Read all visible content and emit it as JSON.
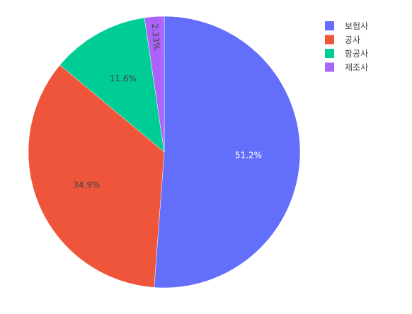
{
  "chart_data": {
    "type": "pie",
    "categories": [
      "보험사",
      "공사",
      "항공사",
      "제조사"
    ],
    "values": [
      51.2,
      34.9,
      11.6,
      2.33
    ],
    "labels": [
      "51.2%",
      "34.9%",
      "11.6%",
      "2.33%"
    ],
    "colors": [
      "#636efa",
      "#ef553b",
      "#00cc96",
      "#ab63fa"
    ],
    "label_colors": [
      "#ffffff",
      "#444444",
      "#444444",
      "#444444"
    ],
    "direction": "clockwise",
    "start_angle": "top",
    "legend": {
      "placement": "top-right"
    },
    "title": ""
  }
}
